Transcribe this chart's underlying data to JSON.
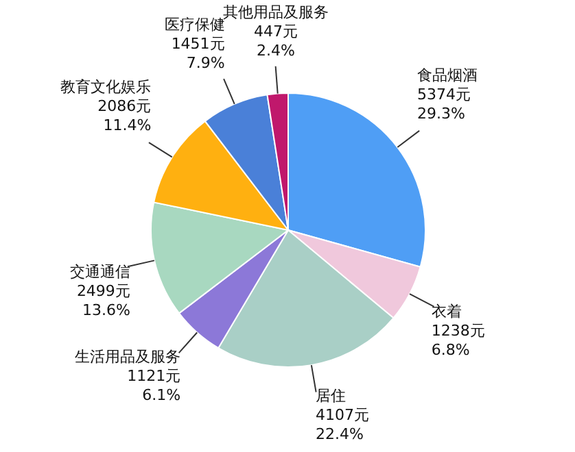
{
  "chart_data": {
    "type": "pie",
    "categories": [
      "食品烟酒",
      "衣着",
      "居住",
      "生活用品及服务",
      "交通通信",
      "教育文化娱乐",
      "医疗保健",
      "其他用品及服务"
    ],
    "values": [
      5374,
      1238,
      4107,
      1121,
      2499,
      2086,
      1451,
      447
    ],
    "colors": [
      "#4f9ef5",
      "#f0c8dc",
      "#a9cfc6",
      "#8c78d8",
      "#a8d8c0",
      "#ffb010",
      "#4a80d8",
      "#c0186c"
    ],
    "value_labels": [
      "5374元\n29.3%",
      "1238元\n6.8%",
      "4107元\n22.4%",
      "1121元\n6.1%",
      "2499元\n13.6%",
      "2086元\n11.4%",
      "1451元\n7.9%",
      "447元\n2.4%"
    ]
  }
}
